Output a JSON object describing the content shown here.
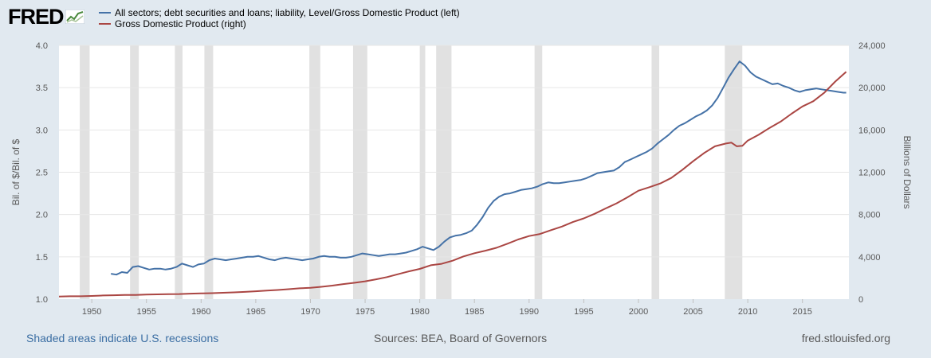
{
  "header": {
    "logo_text": "FRED",
    "legend": [
      {
        "label": "All sectors; debt securities and loans; liability, Level/Gross Domestic Product (left)",
        "color": "#4572a7"
      },
      {
        "label": "Gross Domestic Product (right)",
        "color": "#aa4643"
      }
    ]
  },
  "footer": {
    "recessions_note": "Shaded areas indicate U.S. recessions",
    "sources": "Sources: BEA, Board of Governors",
    "site": "fred.stlouisfed.org"
  },
  "chart_data": {
    "type": "line",
    "xlim": [
      1947,
      2019.25
    ],
    "x_ticks": [
      "1950",
      "1955",
      "1960",
      "1965",
      "1970",
      "1975",
      "1980",
      "1985",
      "1990",
      "1995",
      "2000",
      "2005",
      "2010",
      "2015"
    ],
    "ylabel_left": "Bil. of $/Bil. of $",
    "ylabel_right": "Billions of Dollars",
    "y_left": {
      "min": 1.0,
      "max": 4.0,
      "ticks": [
        "1.0",
        "1.5",
        "2.0",
        "2.5",
        "3.0",
        "3.5",
        "4.0"
      ]
    },
    "y_right": {
      "min": 0,
      "max": 24000,
      "ticks": [
        "0",
        "4,000",
        "8,000",
        "12,000",
        "16,000",
        "20,000",
        "24,000"
      ]
    },
    "recessions": [
      [
        1948.9,
        1949.8
      ],
      [
        1953.5,
        1954.3
      ],
      [
        1957.6,
        1958.3
      ],
      [
        1960.3,
        1961.1
      ],
      [
        1969.9,
        1970.9
      ],
      [
        1973.9,
        1975.2
      ],
      [
        1980.0,
        1980.5
      ],
      [
        1981.5,
        1982.9
      ],
      [
        1990.5,
        1991.2
      ],
      [
        2001.2,
        2001.9
      ],
      [
        2007.9,
        2009.5
      ]
    ],
    "series": [
      {
        "name": "All sectors; debt securities and loans; liability, Level/Gross Domestic Product (left)",
        "axis": "left",
        "color": "#4572a7",
        "points": [
          [
            1951.75,
            1.3
          ],
          [
            1952.25,
            1.29
          ],
          [
            1952.75,
            1.32
          ],
          [
            1953.25,
            1.31
          ],
          [
            1953.75,
            1.38
          ],
          [
            1954.25,
            1.39
          ],
          [
            1954.75,
            1.37
          ],
          [
            1955.25,
            1.35
          ],
          [
            1955.75,
            1.36
          ],
          [
            1956.25,
            1.36
          ],
          [
            1956.75,
            1.35
          ],
          [
            1957.25,
            1.36
          ],
          [
            1957.75,
            1.38
          ],
          [
            1958.25,
            1.42
          ],
          [
            1958.75,
            1.4
          ],
          [
            1959.25,
            1.38
          ],
          [
            1959.75,
            1.41
          ],
          [
            1960.25,
            1.42
          ],
          [
            1960.75,
            1.46
          ],
          [
            1961.25,
            1.48
          ],
          [
            1961.75,
            1.47
          ],
          [
            1962.25,
            1.46
          ],
          [
            1962.75,
            1.47
          ],
          [
            1963.25,
            1.48
          ],
          [
            1963.75,
            1.49
          ],
          [
            1964.25,
            1.5
          ],
          [
            1964.75,
            1.5
          ],
          [
            1965.25,
            1.51
          ],
          [
            1965.75,
            1.49
          ],
          [
            1966.25,
            1.47
          ],
          [
            1966.75,
            1.46
          ],
          [
            1967.25,
            1.48
          ],
          [
            1967.75,
            1.49
          ],
          [
            1968.25,
            1.48
          ],
          [
            1968.75,
            1.47
          ],
          [
            1969.25,
            1.46
          ],
          [
            1969.75,
            1.47
          ],
          [
            1970.25,
            1.48
          ],
          [
            1970.75,
            1.5
          ],
          [
            1971.25,
            1.51
          ],
          [
            1971.75,
            1.5
          ],
          [
            1972.25,
            1.5
          ],
          [
            1972.75,
            1.49
          ],
          [
            1973.25,
            1.49
          ],
          [
            1973.75,
            1.5
          ],
          [
            1974.25,
            1.52
          ],
          [
            1974.75,
            1.54
          ],
          [
            1975.25,
            1.53
          ],
          [
            1975.75,
            1.52
          ],
          [
            1976.25,
            1.51
          ],
          [
            1976.75,
            1.52
          ],
          [
            1977.25,
            1.53
          ],
          [
            1977.75,
            1.53
          ],
          [
            1978.25,
            1.54
          ],
          [
            1978.75,
            1.55
          ],
          [
            1979.25,
            1.57
          ],
          [
            1979.75,
            1.59
          ],
          [
            1980.25,
            1.62
          ],
          [
            1980.75,
            1.6
          ],
          [
            1981.25,
            1.58
          ],
          [
            1981.75,
            1.62
          ],
          [
            1982.25,
            1.68
          ],
          [
            1982.75,
            1.73
          ],
          [
            1983.25,
            1.75
          ],
          [
            1983.75,
            1.76
          ],
          [
            1984.25,
            1.78
          ],
          [
            1984.75,
            1.81
          ],
          [
            1985.25,
            1.88
          ],
          [
            1985.75,
            1.97
          ],
          [
            1986.25,
            2.08
          ],
          [
            1986.75,
            2.16
          ],
          [
            1987.25,
            2.21
          ],
          [
            1987.75,
            2.24
          ],
          [
            1988.25,
            2.25
          ],
          [
            1988.75,
            2.27
          ],
          [
            1989.25,
            2.29
          ],
          [
            1989.75,
            2.3
          ],
          [
            1990.25,
            2.31
          ],
          [
            1990.75,
            2.33
          ],
          [
            1991.25,
            2.36
          ],
          [
            1991.75,
            2.38
          ],
          [
            1992.25,
            2.37
          ],
          [
            1992.75,
            2.37
          ],
          [
            1993.25,
            2.38
          ],
          [
            1993.75,
            2.39
          ],
          [
            1994.25,
            2.4
          ],
          [
            1994.75,
            2.41
          ],
          [
            1995.25,
            2.43
          ],
          [
            1995.75,
            2.46
          ],
          [
            1996.25,
            2.49
          ],
          [
            1996.75,
            2.5
          ],
          [
            1997.25,
            2.51
          ],
          [
            1997.75,
            2.52
          ],
          [
            1998.25,
            2.56
          ],
          [
            1998.75,
            2.62
          ],
          [
            1999.25,
            2.65
          ],
          [
            1999.75,
            2.68
          ],
          [
            2000.25,
            2.71
          ],
          [
            2000.75,
            2.74
          ],
          [
            2001.25,
            2.78
          ],
          [
            2001.75,
            2.84
          ],
          [
            2002.25,
            2.89
          ],
          [
            2002.75,
            2.94
          ],
          [
            2003.25,
            3.0
          ],
          [
            2003.75,
            3.05
          ],
          [
            2004.25,
            3.08
          ],
          [
            2004.75,
            3.12
          ],
          [
            2005.25,
            3.16
          ],
          [
            2005.75,
            3.19
          ],
          [
            2006.25,
            3.23
          ],
          [
            2006.75,
            3.29
          ],
          [
            2007.25,
            3.38
          ],
          [
            2007.75,
            3.5
          ],
          [
            2008.25,
            3.62
          ],
          [
            2008.75,
            3.72
          ],
          [
            2009.25,
            3.81
          ],
          [
            2009.75,
            3.76
          ],
          [
            2010.25,
            3.68
          ],
          [
            2010.75,
            3.63
          ],
          [
            2011.25,
            3.6
          ],
          [
            2011.75,
            3.57
          ],
          [
            2012.25,
            3.54
          ],
          [
            2012.75,
            3.55
          ],
          [
            2013.25,
            3.52
          ],
          [
            2013.75,
            3.5
          ],
          [
            2014.25,
            3.47
          ],
          [
            2014.75,
            3.45
          ],
          [
            2015.25,
            3.47
          ],
          [
            2015.75,
            3.48
          ],
          [
            2016.25,
            3.49
          ],
          [
            2016.75,
            3.48
          ],
          [
            2017.25,
            3.47
          ],
          [
            2017.75,
            3.46
          ],
          [
            2018.25,
            3.45
          ],
          [
            2018.75,
            3.44
          ],
          [
            2019.0,
            3.44
          ]
        ]
      },
      {
        "name": "Gross Domestic Product (right)",
        "axis": "right",
        "color": "#aa4643",
        "points": [
          [
            1947,
            243
          ],
          [
            1948,
            269
          ],
          [
            1949,
            272
          ],
          [
            1950,
            300
          ],
          [
            1951,
            347
          ],
          [
            1952,
            367
          ],
          [
            1953,
            389
          ],
          [
            1954,
            391
          ],
          [
            1955,
            426
          ],
          [
            1956,
            449
          ],
          [
            1957,
            474
          ],
          [
            1958,
            482
          ],
          [
            1959,
            522
          ],
          [
            1960,
            543
          ],
          [
            1961,
            563
          ],
          [
            1962,
            605
          ],
          [
            1963,
            638
          ],
          [
            1964,
            686
          ],
          [
            1965,
            744
          ],
          [
            1966,
            815
          ],
          [
            1967,
            862
          ],
          [
            1968,
            942
          ],
          [
            1969,
            1020
          ],
          [
            1970,
            1073
          ],
          [
            1971,
            1165
          ],
          [
            1972,
            1280
          ],
          [
            1973,
            1425
          ],
          [
            1974,
            1545
          ],
          [
            1975,
            1684
          ],
          [
            1976,
            1873
          ],
          [
            1977,
            2082
          ],
          [
            1978,
            2352
          ],
          [
            1979,
            2627
          ],
          [
            1980,
            2857
          ],
          [
            1981,
            3207
          ],
          [
            1982,
            3343
          ],
          [
            1983,
            3634
          ],
          [
            1984,
            4037
          ],
          [
            1985,
            4339
          ],
          [
            1986,
            4580
          ],
          [
            1987,
            4855
          ],
          [
            1988,
            5236
          ],
          [
            1989,
            5641
          ],
          [
            1990,
            5963
          ],
          [
            1991,
            6158
          ],
          [
            1992,
            6520
          ],
          [
            1993,
            6858
          ],
          [
            1994,
            7287
          ],
          [
            1995,
            7640
          ],
          [
            1996,
            8073
          ],
          [
            1997,
            8577
          ],
          [
            1998,
            9062
          ],
          [
            1999,
            9631
          ],
          [
            2000,
            10252
          ],
          [
            2001,
            10582
          ],
          [
            2002,
            10936
          ],
          [
            2003,
            11458
          ],
          [
            2004,
            12214
          ],
          [
            2005,
            13037
          ],
          [
            2006,
            13815
          ],
          [
            2007,
            14452
          ],
          [
            2008,
            14713
          ],
          [
            2008.5,
            14800
          ],
          [
            2009,
            14449
          ],
          [
            2009.5,
            14500
          ],
          [
            2010,
            14992
          ],
          [
            2011,
            15543
          ],
          [
            2012,
            16197
          ],
          [
            2013,
            16785
          ],
          [
            2014,
            17527
          ],
          [
            2015,
            18225
          ],
          [
            2016,
            18715
          ],
          [
            2017,
            19519
          ],
          [
            2018,
            20580
          ],
          [
            2019,
            21500
          ]
        ]
      }
    ]
  }
}
